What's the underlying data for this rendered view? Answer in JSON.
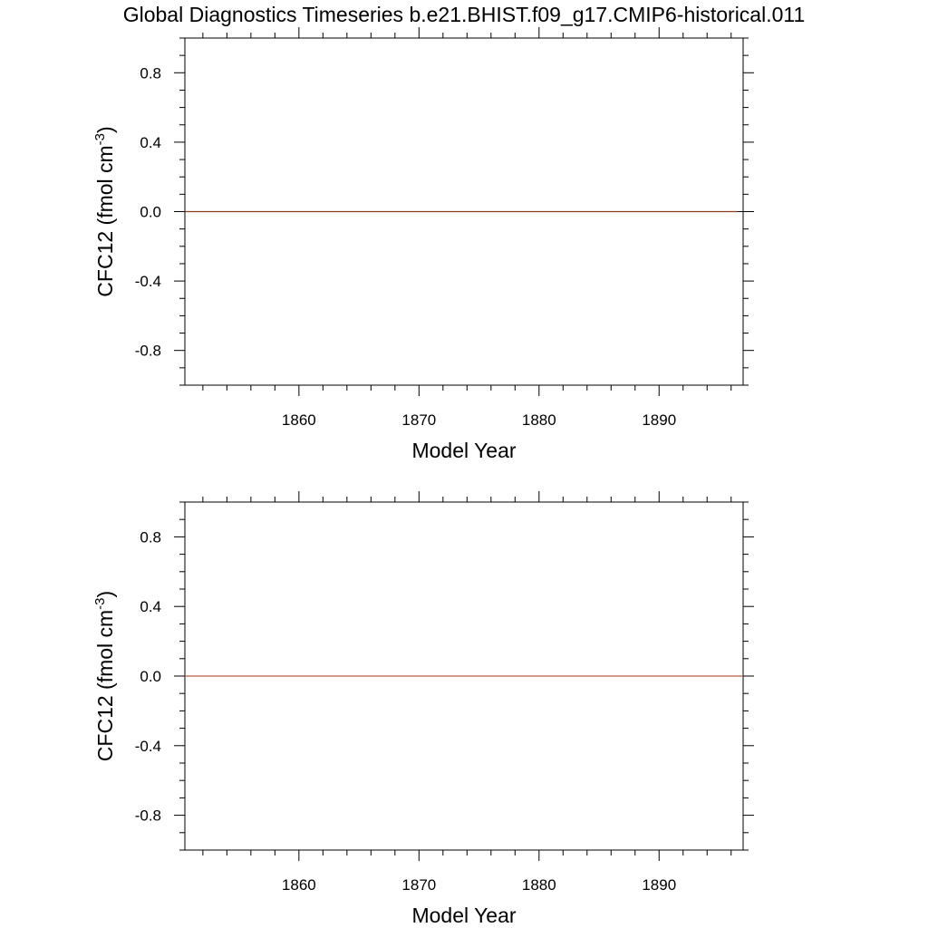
{
  "title": "Global Diagnostics Timeseries b.e21.BHIST.f09_g17.CMIP6-historical.011",
  "chart_data": [
    {
      "type": "line",
      "xlabel": "Model Year",
      "ylabel": "CFC12 (fmol cm",
      "ylabel_superscript": "-3",
      "ylabel_close": ")",
      "xlim": [
        1850.5,
        1897.0
      ],
      "ylim": [
        -1.0,
        1.0
      ],
      "x_ticks": [
        1860,
        1870,
        1880,
        1890
      ],
      "y_ticks": [
        -0.8,
        -0.4,
        0.0,
        0.4,
        0.8
      ],
      "y_tick_labels": [
        "-0.8",
        "-0.4",
        "0.0",
        "0.4",
        "0.8"
      ],
      "x_tick_labels": [
        "1860",
        "1870",
        "1880",
        "1890"
      ],
      "reference_line_y": 0.0,
      "series": [
        {
          "color": "#8b3a1e",
          "x": [
            1850.5,
            1896.5
          ],
          "y": [
            0.0,
            0.0
          ]
        }
      ]
    },
    {
      "type": "line",
      "xlabel": "Model Year",
      "ylabel": "CFC12 (fmol cm",
      "ylabel_superscript": "-3",
      "ylabel_close": ")",
      "xlim": [
        1850.5,
        1897.0
      ],
      "ylim": [
        -1.0,
        1.0
      ],
      "x_ticks": [
        1860,
        1870,
        1880,
        1890
      ],
      "y_ticks": [
        -0.8,
        -0.4,
        0.0,
        0.4,
        0.8
      ],
      "y_tick_labels": [
        "-0.8",
        "-0.4",
        "0.0",
        "0.4",
        "0.8"
      ],
      "x_tick_labels": [
        "1860",
        "1870",
        "1880",
        "1890"
      ],
      "reference_line_y": 0.0,
      "series": [
        {
          "color": "#c0583a",
          "x": [
            1850.5,
            1897.0
          ],
          "y": [
            0.0,
            0.0
          ]
        }
      ]
    }
  ]
}
